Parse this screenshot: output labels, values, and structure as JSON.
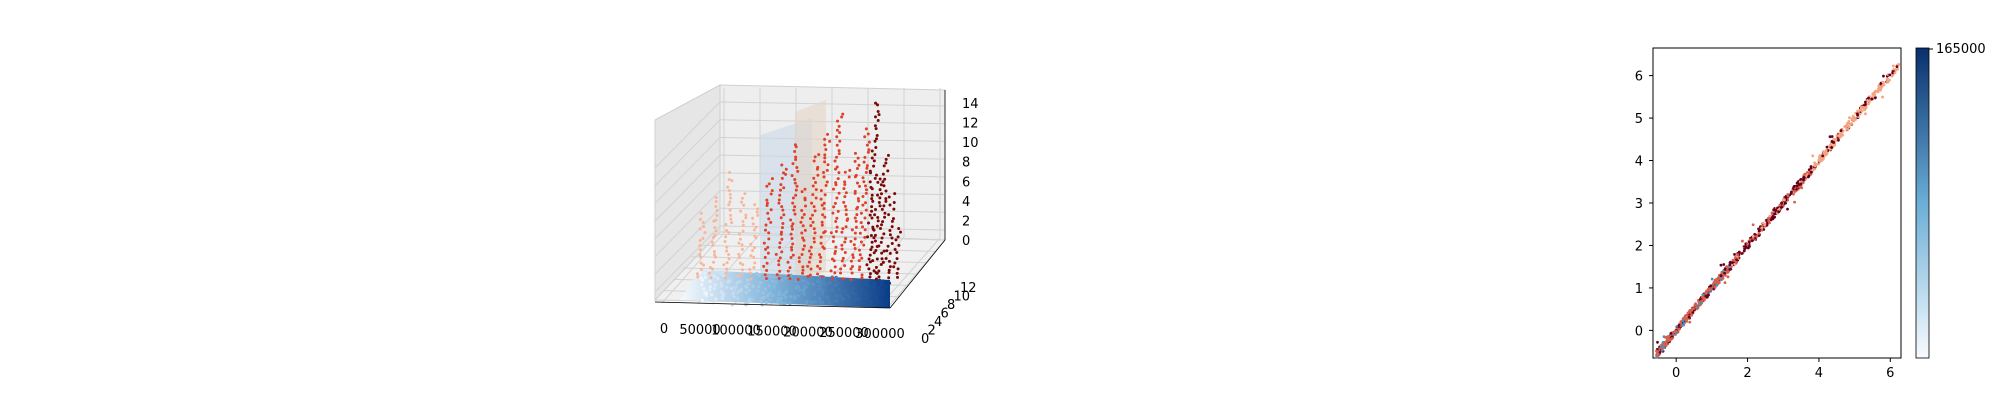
{
  "chart_data": [
    {
      "type": "scatter3d",
      "title": "",
      "x_ticks": [
        "0",
        "50000",
        "100000",
        "150000",
        "200000",
        "250000",
        "300000"
      ],
      "y_ticks": [
        "0",
        "2",
        "4",
        "6",
        "8",
        "10",
        "12"
      ],
      "z_ticks": [
        "0",
        "2",
        "4",
        "6",
        "8",
        "10",
        "12",
        "14"
      ],
      "xlim": [
        0,
        330000
      ],
      "ylim": [
        0,
        13
      ],
      "zlim": [
        0,
        15
      ],
      "colors": {
        "surface_light": "#f0f6fc",
        "surface_dark": "#0b3d86",
        "red_light": "#f6b79c",
        "red_mid": "#e0412c",
        "red_dark": "#7a0a0a",
        "panel": "#f2f2f2"
      }
    },
    {
      "type": "scatter",
      "title": "",
      "x_ticks": [
        "0",
        "2",
        "4",
        "6"
      ],
      "y_ticks": [
        "0",
        "1",
        "2",
        "3",
        "4",
        "5",
        "6"
      ],
      "xlim": [
        -0.65,
        6.3
      ],
      "ylim": [
        -0.65,
        6.65
      ],
      "colorbar": {
        "max_label": "165000",
        "cmap": [
          "#f7fbff",
          "#08306b"
        ]
      },
      "colors": {
        "light": "#f4a582",
        "mid": "#d6604d",
        "dark": "#67001f",
        "blue": "#4393c3"
      }
    }
  ]
}
